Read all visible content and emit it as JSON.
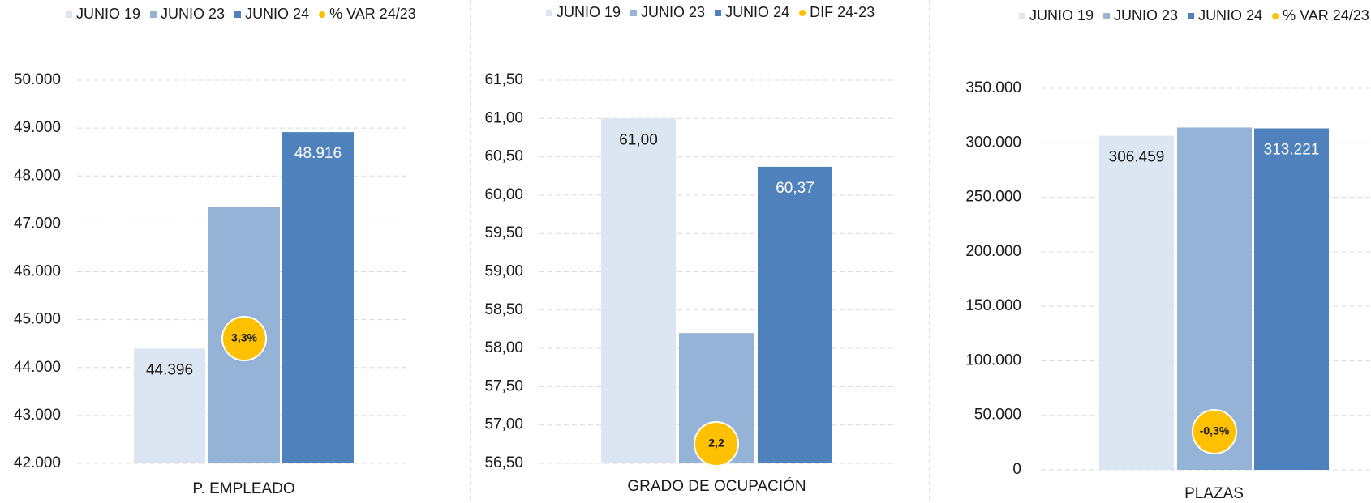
{
  "chart_data": [
    {
      "type": "bar",
      "categories": [
        "P. EMPLEADO"
      ],
      "ylim": [
        42000,
        50000
      ],
      "yticks": [
        {
          "value": 42000,
          "label": "42.000"
        },
        {
          "value": 43000,
          "label": "43.000"
        },
        {
          "value": 44000,
          "label": "44.000"
        },
        {
          "value": 45000,
          "label": "45.000"
        },
        {
          "value": 46000,
          "label": "46.000"
        },
        {
          "value": 47000,
          "label": "47.000"
        },
        {
          "value": 48000,
          "label": "48.000"
        },
        {
          "value": 49000,
          "label": "49.000"
        },
        {
          "value": 50000,
          "label": "50.000"
        }
      ],
      "grid": true,
      "series": [
        {
          "name": "JUNIO 19",
          "color": "#dce6f2",
          "values": [
            44396
          ],
          "value_labels": [
            "44.396"
          ]
        },
        {
          "name": "JUNIO 23",
          "color": "#95b3d7",
          "values": [
            47350
          ]
        },
        {
          "name": "JUNIO 24",
          "color": "#4f81bd",
          "values": [
            48916
          ],
          "value_labels": [
            "48.916"
          ]
        },
        {
          "name": "% VAR 24/23",
          "color": "#ffc000",
          "type": "scatter",
          "values": [
            3.3
          ],
          "value_labels": [
            "3,3%"
          ]
        }
      ]
    },
    {
      "type": "bar",
      "categories": [
        "GRADO DE OCUPACIÓN"
      ],
      "ylim": [
        56.5,
        61.5
      ],
      "yticks": [
        {
          "value": 56.5,
          "label": "56,50"
        },
        {
          "value": 57,
          "label": "57,00"
        },
        {
          "value": 57.5,
          "label": "57,50"
        },
        {
          "value": 58,
          "label": "58,00"
        },
        {
          "value": 58.5,
          "label": "58,50"
        },
        {
          "value": 59,
          "label": "59,00"
        },
        {
          "value": 59.5,
          "label": "59,50"
        },
        {
          "value": 60,
          "label": "60,00"
        },
        {
          "value": 60.5,
          "label": "60,50"
        },
        {
          "value": 61,
          "label": "61,00"
        },
        {
          "value": 61.5,
          "label": "61,50"
        }
      ],
      "grid": true,
      "series": [
        {
          "name": "JUNIO 19",
          "color": "#dce6f2",
          "values": [
            61.0
          ],
          "value_labels": [
            "61,00"
          ]
        },
        {
          "name": "JUNIO 23",
          "color": "#95b3d7",
          "values": [
            58.2
          ]
        },
        {
          "name": "JUNIO 24",
          "color": "#4f81bd",
          "values": [
            60.37
          ],
          "value_labels": [
            "60,37"
          ]
        },
        {
          "name": "DIF 24-23",
          "color": "#ffc000",
          "type": "scatter",
          "values": [
            2.2
          ],
          "value_labels": [
            "2,2"
          ]
        }
      ]
    },
    {
      "type": "bar",
      "categories": [
        "PLAZAS"
      ],
      "ylim": [
        0,
        350000
      ],
      "yticks": [
        0,
        {
          "value": 50000,
          "label": "50.000"
        },
        {
          "value": 100000,
          "label": "100.000"
        },
        {
          "value": 150000,
          "label": "150.000"
        },
        {
          "value": 200000,
          "label": "200.000"
        },
        {
          "value": 250000,
          "label": "250.000"
        },
        {
          "value": 300000,
          "label": "300.000"
        },
        {
          "value": 350000,
          "label": "350.000"
        }
      ],
      "grid": true,
      "series": [
        {
          "name": "JUNIO 19",
          "color": "#dce6f2",
          "values": [
            306459
          ],
          "value_labels": [
            "306.459"
          ]
        },
        {
          "name": "JUNIO 23",
          "color": "#95b3d7",
          "values": [
            314000
          ]
        },
        {
          "name": "JUNIO 24",
          "color": "#4f81bd",
          "values": [
            313221
          ],
          "value_labels": [
            "313.221"
          ]
        },
        {
          "name": "% VAR 24/23",
          "color": "#ffc000",
          "type": "scatter",
          "values": [
            -0.3
          ],
          "value_labels": [
            "-0,3%"
          ]
        }
      ]
    }
  ]
}
